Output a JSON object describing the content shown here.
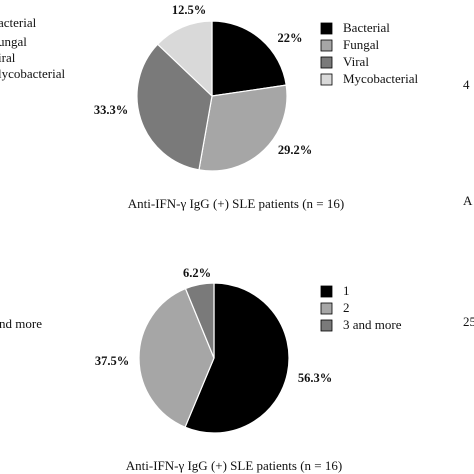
{
  "chart_data": [
    {
      "type": "pie",
      "categories": [
        "Bacterial",
        "Fungal",
        "Viral",
        "Mycobacterial"
      ],
      "values": [
        22,
        29.2,
        33.3,
        12.5
      ],
      "labels": [
        "22%",
        "29.2%",
        "33.3%",
        "12.5%"
      ],
      "colors": [
        "#000000",
        "#a6a6a6",
        "#7a7a7a",
        "#d9d9d9"
      ],
      "xlabel": "Anti-IFN-γ IgG (+) SLE patients (n = 16)",
      "legend_position": "right"
    },
    {
      "type": "pie",
      "categories": [
        "1",
        "2",
        "3 and more"
      ],
      "values": [
        56.3,
        37.5,
        6.2
      ],
      "labels": [
        "56.3%",
        "37.5%",
        "6.2%"
      ],
      "colors": [
        "#000000",
        "#a6a6a6",
        "#7a7a7a"
      ],
      "xlabel": "Anti-IFN-γ IgG (+) SLE patients (n = 16)",
      "legend_position": "right"
    }
  ],
  "cropped_left": {
    "top_legend": [
      "acterial",
      "ungal",
      "iral",
      "lycobacterial"
    ],
    "bottom_legend": [
      "nd more"
    ]
  },
  "cropped_right": {
    "top_label": "4",
    "top_caption": "A",
    "bottom_label": "25"
  }
}
